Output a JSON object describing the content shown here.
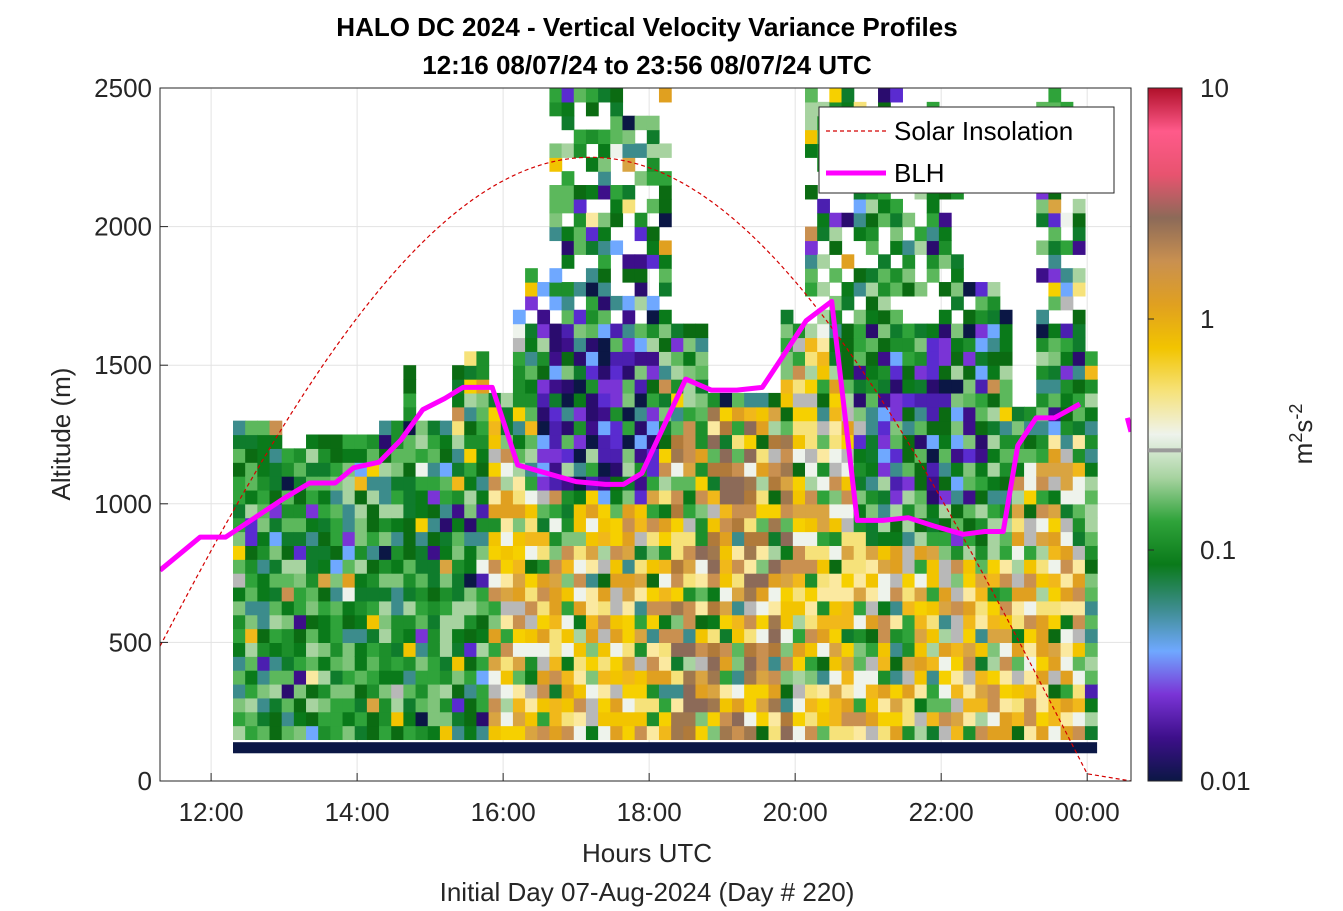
{
  "chart_data": {
    "type": "heatmap",
    "title": "HALO DC 2024 - Vertical Velocity Variance Profiles",
    "subtitle": "12:16 08/07/24 to 23:56 08/07/24  UTC",
    "xlabel": "Hours UTC",
    "ylabel": "Altitude (m)",
    "footer": "Initial Day 07-Aug-2024 (Day # 220)",
    "x_ticks": [
      "12:00",
      "14:00",
      "16:00",
      "18:00",
      "20:00",
      "22:00",
      "00:00"
    ],
    "x_tick_hours": [
      12,
      14,
      16,
      18,
      20,
      22,
      24
    ],
    "xlim_hours": [
      11.3,
      24.6
    ],
    "y_ticks": [
      "0",
      "500",
      "1000",
      "1500",
      "2000",
      "2500"
    ],
    "y_tick_values": [
      0,
      500,
      1000,
      1500,
      2000,
      2500
    ],
    "ylim": [
      0,
      2500
    ],
    "grid": true,
    "colorbar": {
      "label": "m²s⁻²",
      "label_main": "m",
      "label_sup1": "2",
      "label_mid": "s",
      "label_sup2": "-2",
      "scale": "log",
      "range": [
        0.01,
        10
      ],
      "ticks": [
        "0.01",
        "0.1",
        "1",
        "10"
      ],
      "tick_values": [
        0.01,
        0.1,
        1,
        10
      ],
      "stops": [
        "#0b1745",
        "#3d0f8a",
        "#7a34d6",
        "#6fa8ff",
        "#3c8c8c",
        "#0a7a1a",
        "#2fa33a",
        "#a7d3a0",
        "#eef3ec",
        "#f6e27a",
        "#f2c400",
        "#e0a020",
        "#c99050",
        "#8c6a58",
        "#e8536f",
        "#ff5a8a",
        "#b0102a"
      ]
    },
    "legend": {
      "position": "top-right",
      "entries": [
        {
          "name": "Solar Insolation",
          "style": "dashed",
          "color": "#d40000"
        },
        {
          "name": "BLH",
          "style": "solid",
          "color": "#ff00ff"
        }
      ]
    },
    "series": [
      {
        "name": "BLH",
        "x_hours": [
          11.3,
          11.85,
          12.2,
          12.6,
          13.0,
          13.35,
          13.7,
          13.95,
          14.3,
          14.6,
          14.9,
          15.2,
          15.45,
          15.85,
          16.2,
          16.6,
          17.0,
          17.4,
          17.65,
          17.9,
          18.2,
          18.5,
          18.85,
          19.2,
          19.55,
          19.8,
          20.15,
          20.5,
          20.85,
          21.2,
          21.55,
          21.9,
          22.3,
          22.6,
          22.85,
          23.05,
          23.3,
          23.55,
          23.9,
          24.05
        ]
      }
    ],
    "blh_m": [
      760,
      880,
      880,
      950,
      1020,
      1075,
      1075,
      1130,
      1150,
      1230,
      1340,
      1380,
      1420,
      1420,
      1140,
      1110,
      1080,
      1070,
      1070,
      1110,
      1280,
      1450,
      1410,
      1410,
      1420,
      1520,
      1660,
      1730,
      940,
      940,
      950,
      920,
      890,
      900,
      900,
      1210,
      1310,
      1310,
      1360,
      1290
    ],
    "blh_segments": [
      [
        0,
        38
      ],
      [
        38,
        39
      ]
    ],
    "blh_segment_x_override_last": [
      24.55,
      24.6
    ],
    "solar_insolation": {
      "name": "Solar Insolation",
      "sunrise_hours": 10.35,
      "sunset_hours": 24.05,
      "peak_hours": 17.2,
      "peak_m": 2250,
      "flat_after_hours": 24.05,
      "flat_value_m": 0
    },
    "heatmap": {
      "column_start_hours": 12.3,
      "column_width_hours": 0.1667,
      "row_height_m": 50,
      "columns": 71,
      "surface_band_m": [
        100,
        140
      ],
      "surface_band_color": "#0b1745",
      "profiles_top_m_by_hour": [
        [
          12.3,
          1280
        ],
        [
          12.9,
          1180
        ],
        [
          13.2,
          1230
        ],
        [
          13.9,
          1230
        ],
        [
          14.2,
          1300
        ],
        [
          14.5,
          1460
        ],
        [
          14.8,
          1300
        ],
        [
          15.2,
          1480
        ],
        [
          15.4,
          1540
        ],
        [
          15.8,
          1390
        ],
        [
          16.0,
          1730
        ],
        [
          16.3,
          1830
        ],
        [
          16.6,
          2500
        ],
        [
          17.3,
          2500
        ],
        [
          17.6,
          2380
        ],
        [
          18.0,
          2500
        ],
        [
          18.3,
          1620
        ],
        [
          18.7,
          1400
        ],
        [
          19.1,
          1400
        ],
        [
          19.5,
          1400
        ],
        [
          19.8,
          1700
        ],
        [
          20.1,
          2500
        ],
        [
          21.1,
          2500
        ],
        [
          21.4,
          2500
        ],
        [
          21.9,
          2300
        ],
        [
          22.3,
          1780
        ],
        [
          22.6,
          1810
        ],
        [
          22.9,
          1340
        ],
        [
          23.2,
          2500
        ],
        [
          23.6,
          2500
        ],
        [
          23.9,
          1540
        ],
        [
          24.0,
          2500
        ]
      ],
      "value_range": [
        0.01,
        10
      ]
    }
  }
}
